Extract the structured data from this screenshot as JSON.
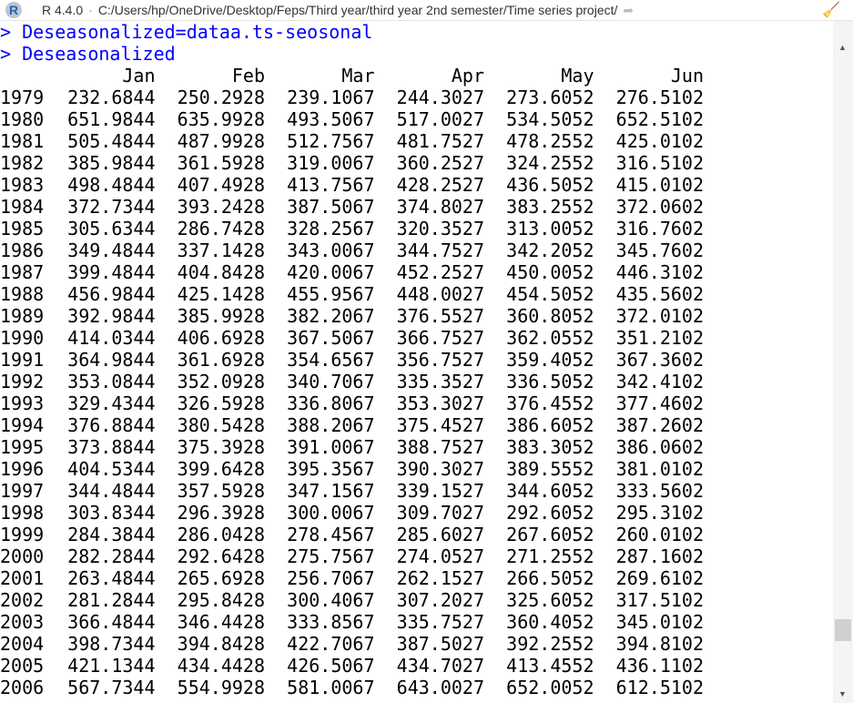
{
  "titlebar": {
    "r_version": "R 4.4.0",
    "separator": "·",
    "working_dir": "C:/Users/hp/OneDrive/Desktop/Feps/Third year/third year 2nd semester/Time series project/",
    "icons": [
      "r-logo-icon",
      "go-to-directory-icon",
      "clear-console-broom-icon"
    ]
  },
  "console": {
    "commands": [
      "> Deseasonalized=dataa.ts-seosonal",
      "> Deseasonalized"
    ],
    "colors": {
      "command": "#0000ff",
      "output": "#000000"
    },
    "columns": [
      "Jan",
      "Feb",
      "Mar",
      "Apr",
      "May",
      "Jun"
    ],
    "rows": [
      [
        "1979",
        "232.6844",
        "250.2928",
        "239.1067",
        "244.3027",
        "273.6052",
        "276.5102"
      ],
      [
        "1980",
        "651.9844",
        "635.9928",
        "493.5067",
        "517.0027",
        "534.5052",
        "652.5102"
      ],
      [
        "1981",
        "505.4844",
        "487.9928",
        "512.7567",
        "481.7527",
        "478.2552",
        "425.0102"
      ],
      [
        "1982",
        "385.9844",
        "361.5928",
        "319.0067",
        "360.2527",
        "324.2552",
        "316.5102"
      ],
      [
        "1983",
        "498.4844",
        "407.4928",
        "413.7567",
        "428.2527",
        "436.5052",
        "415.0102"
      ],
      [
        "1984",
        "372.7344",
        "393.2428",
        "387.5067",
        "374.8027",
        "383.2552",
        "372.0602"
      ],
      [
        "1985",
        "305.6344",
        "286.7428",
        "328.2567",
        "320.3527",
        "313.0052",
        "316.7602"
      ],
      [
        "1986",
        "349.4844",
        "337.1428",
        "343.0067",
        "344.7527",
        "342.2052",
        "345.7602"
      ],
      [
        "1987",
        "399.4844",
        "404.8428",
        "420.0067",
        "452.2527",
        "450.0052",
        "446.3102"
      ],
      [
        "1988",
        "456.9844",
        "425.1428",
        "455.9567",
        "448.0027",
        "454.5052",
        "435.5602"
      ],
      [
        "1989",
        "392.9844",
        "385.9928",
        "382.2067",
        "376.5527",
        "360.8052",
        "372.0102"
      ],
      [
        "1990",
        "414.0344",
        "406.6928",
        "367.5067",
        "366.7527",
        "362.0552",
        "351.2102"
      ],
      [
        "1991",
        "364.9844",
        "361.6928",
        "354.6567",
        "356.7527",
        "359.4052",
        "367.3602"
      ],
      [
        "1992",
        "353.0844",
        "352.0928",
        "340.7067",
        "335.3527",
        "336.5052",
        "342.4102"
      ],
      [
        "1993",
        "329.4344",
        "326.5928",
        "336.8067",
        "353.3027",
        "376.4552",
        "377.4602"
      ],
      [
        "1994",
        "376.8844",
        "380.5428",
        "388.2067",
        "375.4527",
        "386.6052",
        "387.2602"
      ],
      [
        "1995",
        "373.8844",
        "375.3928",
        "391.0067",
        "388.7527",
        "383.3052",
        "386.0602"
      ],
      [
        "1996",
        "404.5344",
        "399.6428",
        "395.3567",
        "390.3027",
        "389.5552",
        "381.0102"
      ],
      [
        "1997",
        "344.4844",
        "357.5928",
        "347.1567",
        "339.1527",
        "344.6052",
        "333.5602"
      ],
      [
        "1998",
        "303.8344",
        "296.3928",
        "300.0067",
        "309.7027",
        "292.6052",
        "295.3102"
      ],
      [
        "1999",
        "284.3844",
        "286.0428",
        "278.4567",
        "285.6027",
        "267.6052",
        "260.0102"
      ],
      [
        "2000",
        "282.2844",
        "292.6428",
        "275.7567",
        "274.0527",
        "271.2552",
        "287.1602"
      ],
      [
        "2001",
        "263.4844",
        "265.6928",
        "256.7067",
        "262.1527",
        "266.5052",
        "269.6102"
      ],
      [
        "2002",
        "281.2844",
        "295.8428",
        "300.4067",
        "307.2027",
        "325.6052",
        "317.5102"
      ],
      [
        "2003",
        "366.4844",
        "346.4428",
        "333.8567",
        "335.7527",
        "360.4052",
        "345.0102"
      ],
      [
        "2004",
        "398.7344",
        "394.8428",
        "422.7067",
        "387.5027",
        "392.2552",
        "394.8102"
      ],
      [
        "2005",
        "421.1344",
        "434.4428",
        "426.5067",
        "434.7027",
        "413.4552",
        "436.1102"
      ],
      [
        "2006",
        "567.7344",
        "554.9928",
        "581.0067",
        "643.0027",
        "652.0052",
        "612.5102"
      ]
    ]
  }
}
